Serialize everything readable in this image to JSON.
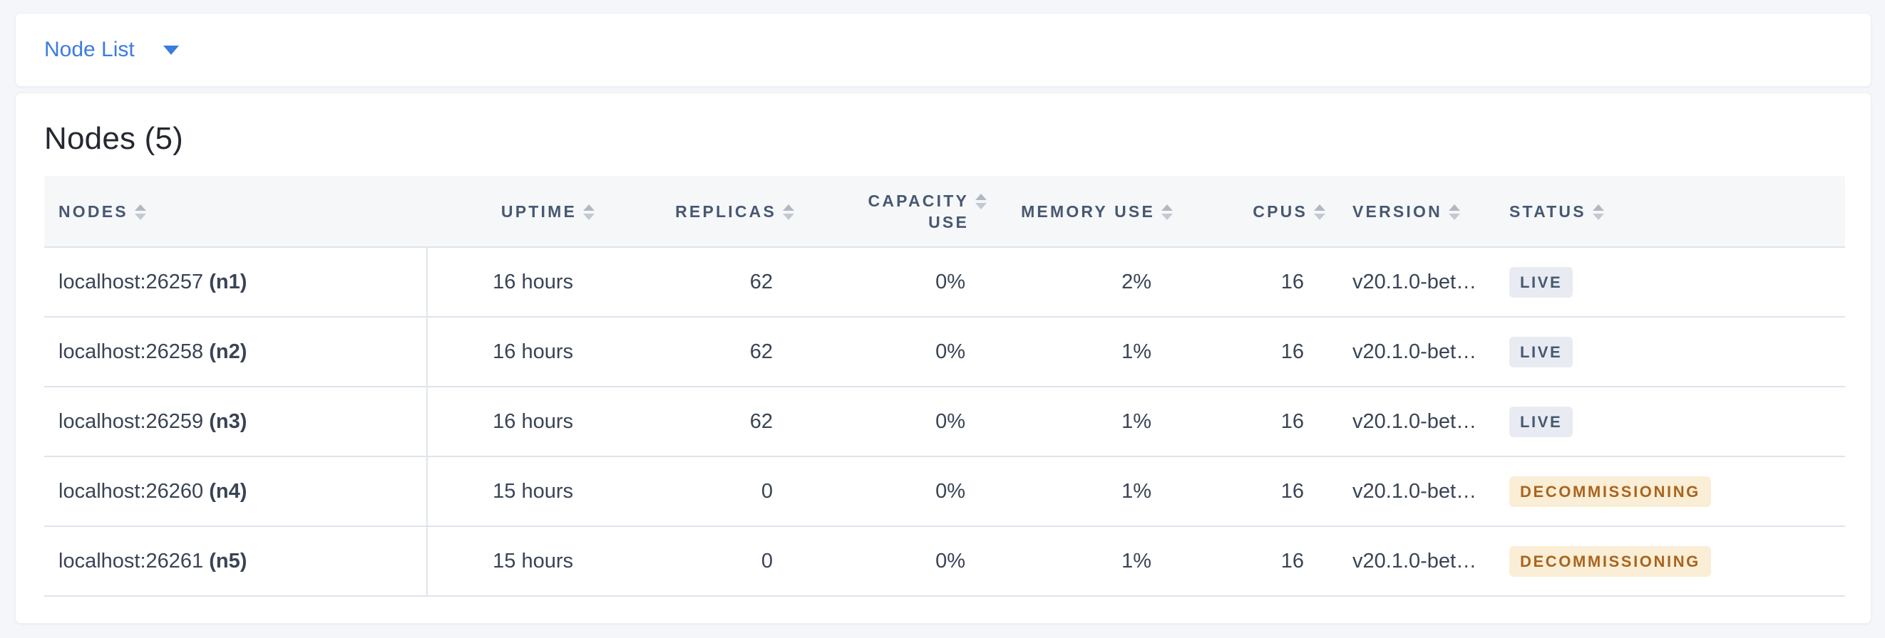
{
  "nav": {
    "view_selector": {
      "label": "Node List"
    }
  },
  "page": {
    "title": "Nodes (5)"
  },
  "table": {
    "columns": [
      {
        "key": "nodes",
        "label": "NODES"
      },
      {
        "key": "uptime",
        "label": "UPTIME"
      },
      {
        "key": "replicas",
        "label": "REPLICAS"
      },
      {
        "key": "capacity_use",
        "label": "CAPACITY USE"
      },
      {
        "key": "memory_use",
        "label": "MEMORY USE"
      },
      {
        "key": "cpus",
        "label": "CPUS"
      },
      {
        "key": "version",
        "label": "VERSION"
      },
      {
        "key": "status",
        "label": "STATUS"
      }
    ],
    "rows": [
      {
        "address": "localhost:26257",
        "name": "(n1)",
        "uptime": "16 hours",
        "replicas": "62",
        "capacity_use": "0%",
        "memory_use": "2%",
        "cpus": "16",
        "version": "v20.1.0-bet…",
        "status": "LIVE"
      },
      {
        "address": "localhost:26258",
        "name": "(n2)",
        "uptime": "16 hours",
        "replicas": "62",
        "capacity_use": "0%",
        "memory_use": "1%",
        "cpus": "16",
        "version": "v20.1.0-bet…",
        "status": "LIVE"
      },
      {
        "address": "localhost:26259",
        "name": "(n3)",
        "uptime": "16 hours",
        "replicas": "62",
        "capacity_use": "0%",
        "memory_use": "1%",
        "cpus": "16",
        "version": "v20.1.0-bet…",
        "status": "LIVE"
      },
      {
        "address": "localhost:26260",
        "name": "(n4)",
        "uptime": "15 hours",
        "replicas": "0",
        "capacity_use": "0%",
        "memory_use": "1%",
        "cpus": "16",
        "version": "v20.1.0-bet…",
        "status": "DECOMMISSIONING"
      },
      {
        "address": "localhost:26261",
        "name": "(n5)",
        "uptime": "15 hours",
        "replicas": "0",
        "capacity_use": "0%",
        "memory_use": "1%",
        "cpus": "16",
        "version": "v20.1.0-bet…",
        "status": "DECOMMISSIONING"
      }
    ]
  },
  "icons": {
    "dropdown_caret": "caret-down-icon",
    "sort": "sort-arrows-icon"
  },
  "colors": {
    "accent_blue": "#3a7ce0",
    "header_text": "#475872",
    "body_text": "#394455",
    "live_badge_bg": "#e8ebf1",
    "live_badge_text": "#475872",
    "decommissioning_badge_bg": "#fbeed6",
    "decommissioning_badge_text": "#a8651f",
    "page_bg": "#f4f6fa",
    "table_header_bg": "#f6f7f9",
    "row_border": "#dfe4ec"
  }
}
